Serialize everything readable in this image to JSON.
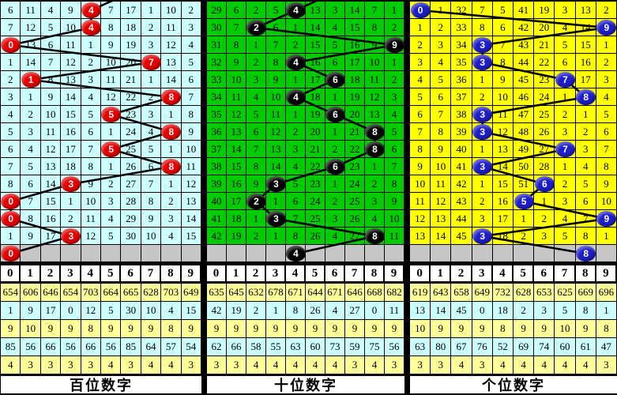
{
  "colors": {
    "hundreds_bg": "#CCFFFF",
    "tens_bg": "#00CC00",
    "ones_bg": "#FFFF00",
    "gray_row": "#C6C6C6",
    "stat_yellow": "#FFFF99",
    "stat_cyan": "#CCFFFF",
    "header_bg": "#FFFFFF",
    "ball_red": "#E60000",
    "ball_black": "#000000",
    "ball_blue": "#1E1ECC",
    "trend_line": "#000000"
  },
  "chart_data": [
    {
      "type": "table",
      "footer": "百位数字",
      "bg": "#CCFFFF",
      "ball_color": "#E60000",
      "incoming_line_col": 6,
      "digit_headers": [
        "0",
        "1",
        "2",
        "3",
        "4",
        "5",
        "6",
        "7",
        "8",
        "9"
      ],
      "drawn_digit_sequence": [
        4,
        4,
        0,
        7,
        1,
        8,
        5,
        8,
        5,
        8,
        3,
        0,
        0,
        3,
        0
      ],
      "rows": [
        {
          "cells": [
            "6",
            "11",
            "4",
            "9",
            "4",
            "7",
            "17",
            "1",
            "10",
            "2"
          ],
          "hit": 4
        },
        {
          "cells": [
            "7",
            "12",
            "5",
            "10",
            "4",
            "8",
            "18",
            "2",
            "11",
            "3"
          ],
          "hit": 4
        },
        {
          "cells": [
            "0",
            "13",
            "6",
            "11",
            "1",
            "9",
            "19",
            "3",
            "12",
            "4"
          ],
          "hit": 0
        },
        {
          "cells": [
            "1",
            "14",
            "7",
            "12",
            "2",
            "10",
            "20",
            "7",
            "13",
            "5"
          ],
          "hit": 7
        },
        {
          "cells": [
            "2",
            "1",
            "8",
            "13",
            "3",
            "11",
            "21",
            "1",
            "14",
            "6"
          ],
          "hit": 1
        },
        {
          "cells": [
            "3",
            "1",
            "9",
            "14",
            "4",
            "12",
            "22",
            "2",
            "8",
            "7"
          ],
          "hit": 8
        },
        {
          "cells": [
            "4",
            "2",
            "10",
            "15",
            "5",
            "5",
            "23",
            "3",
            "1",
            "8"
          ],
          "hit": 5
        },
        {
          "cells": [
            "5",
            "3",
            "11",
            "16",
            "6",
            "1",
            "24",
            "4",
            "8",
            "9"
          ],
          "hit": 8
        },
        {
          "cells": [
            "6",
            "4",
            "12",
            "17",
            "7",
            "5",
            "25",
            "5",
            "1",
            "10"
          ],
          "hit": 5
        },
        {
          "cells": [
            "7",
            "5",
            "13",
            "18",
            "8",
            "1",
            "26",
            "6",
            "8",
            "11"
          ],
          "hit": 8
        },
        {
          "cells": [
            "8",
            "6",
            "14",
            "3",
            "9",
            "2",
            "27",
            "7",
            "1",
            "12"
          ],
          "hit": 3
        },
        {
          "cells": [
            "0",
            "7",
            "15",
            "1",
            "10",
            "3",
            "28",
            "8",
            "2",
            "13"
          ],
          "hit": 0
        },
        {
          "cells": [
            "0",
            "8",
            "16",
            "2",
            "11",
            "4",
            "29",
            "9",
            "3",
            "14"
          ],
          "hit": 0
        },
        {
          "cells": [
            "1",
            "9",
            "17",
            "3",
            "12",
            "5",
            "30",
            "10",
            "4",
            "15"
          ],
          "hit": 3
        }
      ],
      "pending_hit": 0,
      "stats_rows": [
        [
          "654",
          "606",
          "646",
          "654",
          "703",
          "664",
          "665",
          "628",
          "703",
          "649"
        ],
        [
          "1",
          "9",
          "17",
          "0",
          "12",
          "5",
          "30",
          "10",
          "4",
          "15"
        ],
        [
          "9",
          "10",
          "9",
          "9",
          "8",
          "9",
          "9",
          "9",
          "8",
          "9"
        ],
        [
          "85",
          "56",
          "66",
          "56",
          "66",
          "56",
          "85",
          "64",
          "57",
          "54"
        ],
        [
          "4",
          "3",
          "3",
          "3",
          "3",
          "4",
          "3",
          "4",
          "4",
          "3"
        ]
      ]
    },
    {
      "type": "table",
      "footer": "十位数字",
      "bg": "#00CC00",
      "ball_color": "#000000",
      "incoming_line_col": 6,
      "digit_headers": [
        "0",
        "1",
        "2",
        "3",
        "4",
        "5",
        "6",
        "7",
        "8",
        "9"
      ],
      "drawn_digit_sequence": [
        4,
        2,
        9,
        4,
        6,
        4,
        6,
        8,
        8,
        6,
        3,
        2,
        3,
        8,
        4
      ],
      "rows": [
        {
          "cells": [
            "29",
            "6",
            "2",
            "5",
            "4",
            "13",
            "3",
            "14",
            "7",
            "1"
          ],
          "hit": 4
        },
        {
          "cells": [
            "30",
            "7",
            "2",
            "6",
            "1",
            "14",
            "4",
            "15",
            "8",
            "2"
          ],
          "hit": 2
        },
        {
          "cells": [
            "31",
            "8",
            "1",
            "7",
            "2",
            "15",
            "5",
            "16",
            "9",
            "9"
          ],
          "hit": 9
        },
        {
          "cells": [
            "32",
            "9",
            "2",
            "8",
            "4",
            "16",
            "6",
            "17",
            "10",
            "1"
          ],
          "hit": 4
        },
        {
          "cells": [
            "33",
            "10",
            "3",
            "9",
            "1",
            "17",
            "6",
            "18",
            "11",
            "2"
          ],
          "hit": 6
        },
        {
          "cells": [
            "34",
            "11",
            "4",
            "10",
            "4",
            "18",
            "1",
            "19",
            "12",
            "3"
          ],
          "hit": 4
        },
        {
          "cells": [
            "35",
            "12",
            "5",
            "11",
            "1",
            "19",
            "6",
            "20",
            "13",
            "4"
          ],
          "hit": 6
        },
        {
          "cells": [
            "36",
            "13",
            "6",
            "12",
            "2",
            "20",
            "1",
            "21",
            "8",
            "5"
          ],
          "hit": 8
        },
        {
          "cells": [
            "37",
            "14",
            "7",
            "13",
            "3",
            "21",
            "2",
            "22",
            "8",
            "6"
          ],
          "hit": 8
        },
        {
          "cells": [
            "38",
            "15",
            "8",
            "14",
            "4",
            "22",
            "6",
            "23",
            "1",
            "7"
          ],
          "hit": 6
        },
        {
          "cells": [
            "39",
            "16",
            "9",
            "3",
            "5",
            "23",
            "1",
            "24",
            "2",
            "8"
          ],
          "hit": 3
        },
        {
          "cells": [
            "40",
            "17",
            "2",
            "1",
            "6",
            "24",
            "2",
            "25",
            "3",
            "9"
          ],
          "hit": 2
        },
        {
          "cells": [
            "41",
            "18",
            "1",
            "3",
            "7",
            "25",
            "3",
            "26",
            "4",
            "10"
          ],
          "hit": 3
        },
        {
          "cells": [
            "42",
            "19",
            "2",
            "1",
            "8",
            "26",
            "4",
            "27",
            "8",
            "11"
          ],
          "hit": 8
        }
      ],
      "pending_hit": 4,
      "stats_rows": [
        [
          "635",
          "645",
          "632",
          "678",
          "671",
          "644",
          "671",
          "646",
          "668",
          "682"
        ],
        [
          "42",
          "19",
          "2",
          "1",
          "8",
          "26",
          "4",
          "27",
          "0",
          "11"
        ],
        [
          "9",
          "9",
          "9",
          "9",
          "9",
          "9",
          "9",
          "9",
          "9",
          "9"
        ],
        [
          "62",
          "66",
          "58",
          "55",
          "63",
          "60",
          "73",
          "59",
          "75",
          "56"
        ],
        [
          "3",
          "3",
          "4",
          "4",
          "4",
          "4",
          "4",
          "3",
          "4",
          "3"
        ]
      ]
    },
    {
      "type": "table",
      "footer": "个位数字",
      "bg": "#FFFF00",
      "ball_color": "#1E1ECC",
      "incoming_line_col": null,
      "digit_headers": [
        "0",
        "1",
        "2",
        "3",
        "4",
        "5",
        "6",
        "7",
        "8",
        "9"
      ],
      "drawn_digit_sequence": [
        0,
        9,
        3,
        3,
        7,
        8,
        3,
        3,
        7,
        3,
        6,
        5,
        9,
        3,
        8
      ],
      "rows": [
        {
          "cells": [
            "0",
            "1",
            "32",
            "7",
            "5",
            "41",
            "19",
            "3",
            "13",
            "2"
          ],
          "hit": 0
        },
        {
          "cells": [
            "1",
            "2",
            "33",
            "8",
            "6",
            "42",
            "20",
            "4",
            "14",
            "9"
          ],
          "hit": 9
        },
        {
          "cells": [
            "2",
            "3",
            "34",
            "3",
            "7",
            "43",
            "21",
            "5",
            "15",
            "1"
          ],
          "hit": 3
        },
        {
          "cells": [
            "3",
            "4",
            "35",
            "3",
            "8",
            "44",
            "22",
            "6",
            "16",
            "2"
          ],
          "hit": 3
        },
        {
          "cells": [
            "4",
            "5",
            "36",
            "1",
            "9",
            "45",
            "23",
            "7",
            "17",
            "3"
          ],
          "hit": 7
        },
        {
          "cells": [
            "5",
            "6",
            "37",
            "2",
            "10",
            "46",
            "24",
            "1",
            "8",
            "4"
          ],
          "hit": 8
        },
        {
          "cells": [
            "6",
            "7",
            "38",
            "3",
            "11",
            "47",
            "25",
            "2",
            "1",
            "5"
          ],
          "hit": 3
        },
        {
          "cells": [
            "7",
            "8",
            "39",
            "3",
            "12",
            "48",
            "26",
            "3",
            "2",
            "6"
          ],
          "hit": 3
        },
        {
          "cells": [
            "8",
            "9",
            "40",
            "1",
            "13",
            "49",
            "27",
            "7",
            "3",
            "7"
          ],
          "hit": 7
        },
        {
          "cells": [
            "9",
            "10",
            "41",
            "3",
            "14",
            "50",
            "28",
            "1",
            "4",
            "8"
          ],
          "hit": 3
        },
        {
          "cells": [
            "10",
            "11",
            "42",
            "1",
            "15",
            "51",
            "6",
            "2",
            "5",
            "9"
          ],
          "hit": 6
        },
        {
          "cells": [
            "11",
            "12",
            "43",
            "2",
            "16",
            "5",
            "1",
            "3",
            "6",
            "10"
          ],
          "hit": 5
        },
        {
          "cells": [
            "12",
            "13",
            "44",
            "3",
            "17",
            "1",
            "2",
            "4",
            "7",
            "9"
          ],
          "hit": 9
        },
        {
          "cells": [
            "13",
            "14",
            "45",
            "3",
            "18",
            "2",
            "3",
            "5",
            "8",
            "1"
          ],
          "hit": 3
        }
      ],
      "pending_hit": 8,
      "stats_rows": [
        [
          "619",
          "643",
          "658",
          "649",
          "732",
          "628",
          "653",
          "625",
          "669",
          "696"
        ],
        [
          "13",
          "14",
          "45",
          "0",
          "18",
          "2",
          "3",
          "5",
          "8",
          "1"
        ],
        [
          "10",
          "9",
          "9",
          "9",
          "8",
          "9",
          "9",
          "10",
          "9",
          "8"
        ],
        [
          "63",
          "80",
          "67",
          "76",
          "52",
          "69",
          "74",
          "60",
          "61",
          "47"
        ],
        [
          "3",
          "3",
          "4",
          "3",
          "4",
          "4",
          "4",
          "4",
          "4",
          "3"
        ]
      ]
    }
  ]
}
